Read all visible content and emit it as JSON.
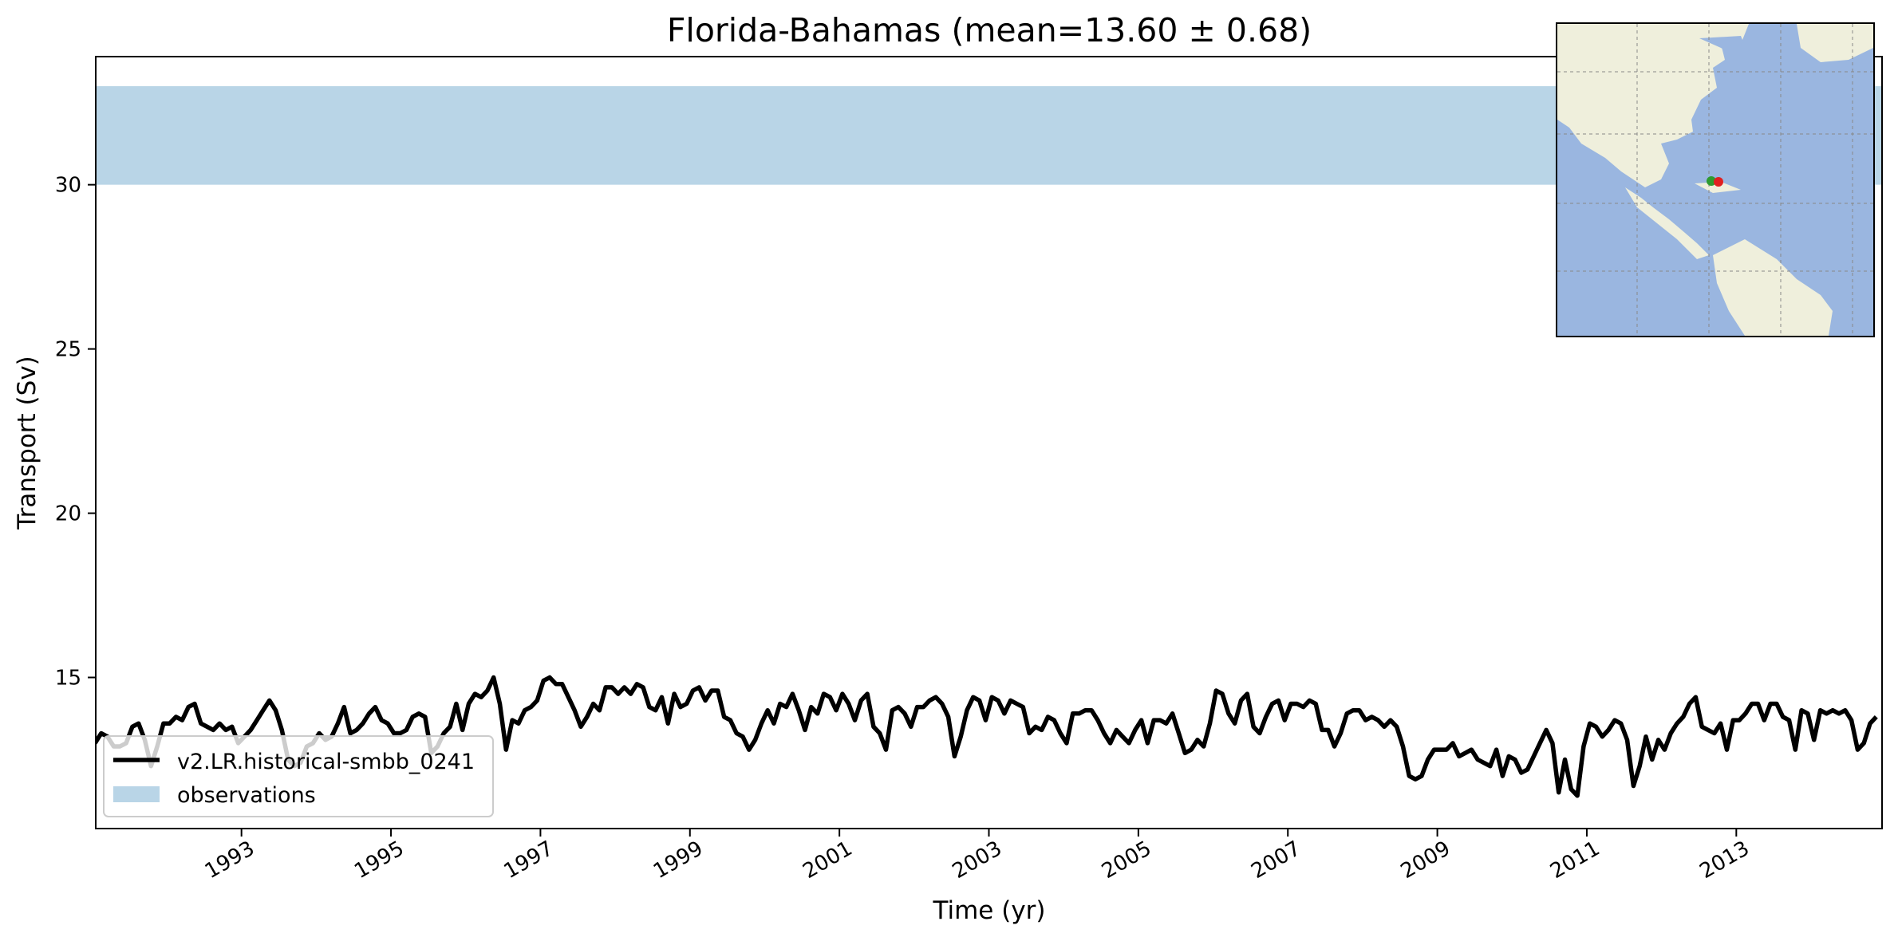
{
  "chart_data": {
    "type": "line",
    "title": "Florida-Bahamas (mean=13.60 ± 0.68)",
    "xlabel": "Time (yr)",
    "ylabel": "Transport (Sv)",
    "xlim": [
      1991.05,
      2014.95
    ],
    "ylim": [
      10.4,
      33.9
    ],
    "x_ticks": [
      "1993",
      "1995",
      "1997",
      "1999",
      "2001",
      "2003",
      "2005",
      "2007",
      "2009",
      "2011",
      "2013"
    ],
    "y_ticks": [
      "15",
      "20",
      "25",
      "30"
    ],
    "grid": false,
    "legend_position": "lower-left",
    "observations": {
      "name": "observations",
      "ymin": 30,
      "ymax": 33,
      "color": "#b9d5e7"
    },
    "series": [
      {
        "name": "v2.LR.historical-smbb_0241",
        "color": "#000000",
        "x_start": 1991.04,
        "step_months": 1,
        "values": [
          13.0,
          13.3,
          13.2,
          12.9,
          12.9,
          13.0,
          13.5,
          13.6,
          13.1,
          12.3,
          12.9,
          13.6,
          13.6,
          13.8,
          13.7,
          14.1,
          14.2,
          13.6,
          13.5,
          13.4,
          13.6,
          13.4,
          13.5,
          13.0,
          13.2,
          13.4,
          13.7,
          14.0,
          14.3,
          14.0,
          13.4,
          12.5,
          12.3,
          12.4,
          12.9,
          13.0,
          13.3,
          13.1,
          13.2,
          13.6,
          14.1,
          13.3,
          13.4,
          13.6,
          13.9,
          14.1,
          13.7,
          13.6,
          13.3,
          13.3,
          13.4,
          13.8,
          13.9,
          13.8,
          12.7,
          12.9,
          13.3,
          13.5,
          14.2,
          13.4,
          14.2,
          14.5,
          14.4,
          14.6,
          15.0,
          14.2,
          12.8,
          13.7,
          13.6,
          14.0,
          14.1,
          14.3,
          14.9,
          15.0,
          14.8,
          14.8,
          14.4,
          14.0,
          13.5,
          13.8,
          14.2,
          14.0,
          14.7,
          14.7,
          14.5,
          14.7,
          14.5,
          14.8,
          14.7,
          14.1,
          14.0,
          14.4,
          13.6,
          14.5,
          14.1,
          14.2,
          14.6,
          14.7,
          14.3,
          14.6,
          14.6,
          13.8,
          13.7,
          13.3,
          13.2,
          12.8,
          13.1,
          13.6,
          14.0,
          13.6,
          14.2,
          14.1,
          14.5,
          14.0,
          13.4,
          14.1,
          13.9,
          14.5,
          14.4,
          14.0,
          14.5,
          14.2,
          13.7,
          14.3,
          14.5,
          13.5,
          13.3,
          12.8,
          14.0,
          14.1,
          13.9,
          13.5,
          14.1,
          14.1,
          14.3,
          14.4,
          14.2,
          13.8,
          12.6,
          13.2,
          14.0,
          14.4,
          14.3,
          13.7,
          14.4,
          14.3,
          13.9,
          14.3,
          14.2,
          14.1,
          13.3,
          13.5,
          13.4,
          13.8,
          13.7,
          13.3,
          13.0,
          13.9,
          13.9,
          14.0,
          14.0,
          13.7,
          13.3,
          13.0,
          13.4,
          13.2,
          13.0,
          13.4,
          13.7,
          13.0,
          13.7,
          13.7,
          13.6,
          13.9,
          13.3,
          12.7,
          12.8,
          13.1,
          12.9,
          13.6,
          14.6,
          14.5,
          13.9,
          13.6,
          14.3,
          14.5,
          13.5,
          13.3,
          13.8,
          14.2,
          14.3,
          13.7,
          14.2,
          14.2,
          14.1,
          14.3,
          14.2,
          13.4,
          13.4,
          12.9,
          13.3,
          13.9,
          14.0,
          14.0,
          13.7,
          13.8,
          13.7,
          13.5,
          13.7,
          13.5,
          12.9,
          12.0,
          11.9,
          12.0,
          12.5,
          12.8,
          12.8,
          12.8,
          13.0,
          12.6,
          12.7,
          12.8,
          12.5,
          12.4,
          12.3,
          12.8,
          12.0,
          12.6,
          12.5,
          12.1,
          12.2,
          12.6,
          13.0,
          13.4,
          13.0,
          11.5,
          12.5,
          11.6,
          11.4,
          12.9,
          13.6,
          13.5,
          13.2,
          13.4,
          13.7,
          13.6,
          13.1,
          11.7,
          12.3,
          13.2,
          12.5,
          13.1,
          12.8,
          13.3,
          13.6,
          13.8,
          14.2,
          14.4,
          13.5,
          13.4,
          13.3,
          13.6,
          12.8,
          13.7,
          13.7,
          13.9,
          14.2,
          14.2,
          13.7,
          14.2,
          14.2,
          13.8,
          13.7,
          12.8,
          14.0,
          13.9,
          13.1,
          14.0,
          13.9,
          14.0,
          13.9,
          14.0,
          13.7,
          12.8,
          13.0,
          13.6,
          13.8
        ]
      }
    ]
  }
}
